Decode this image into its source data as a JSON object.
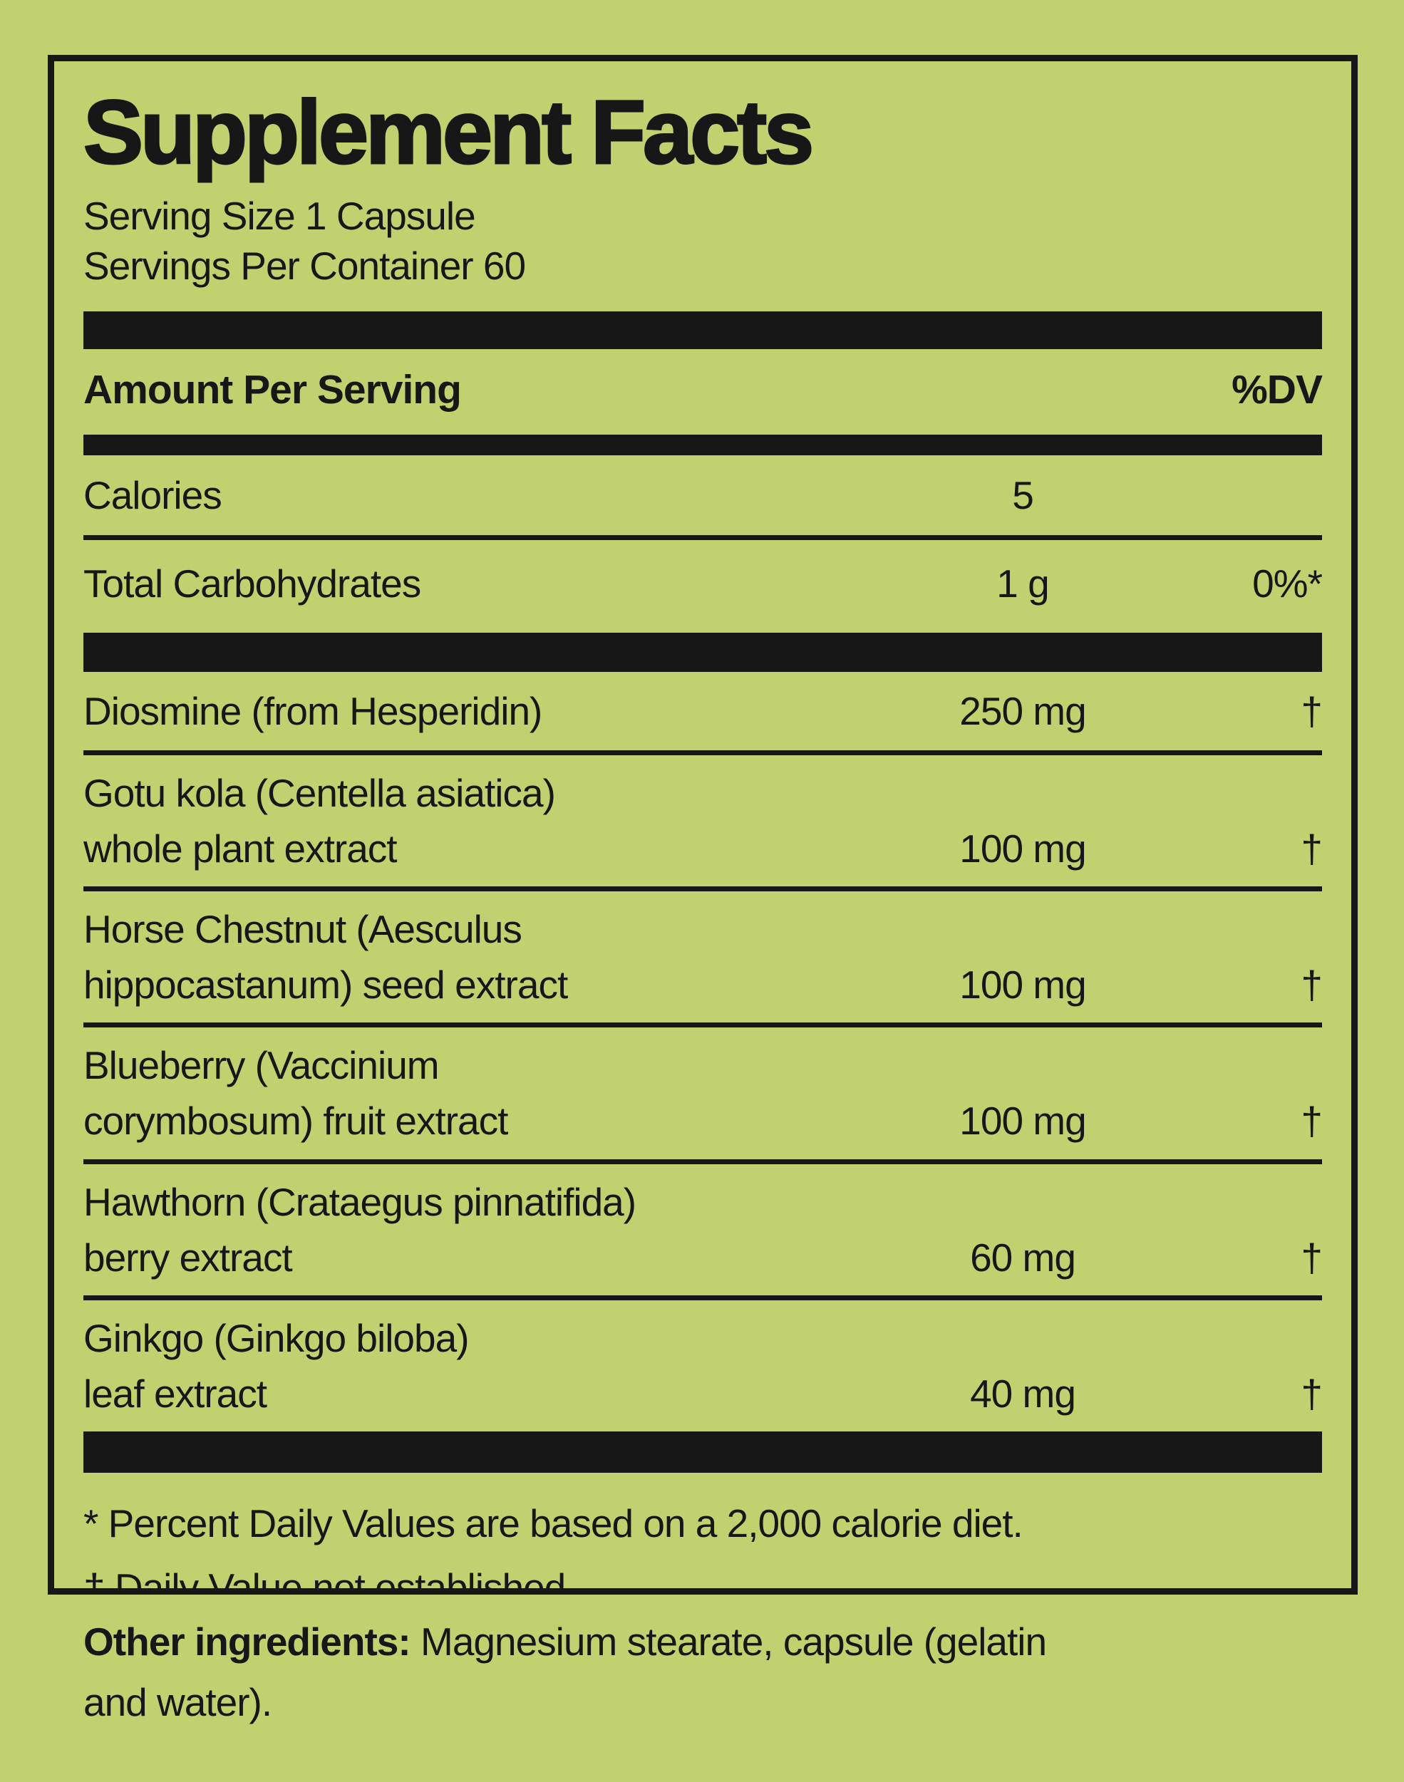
{
  "title": "Supplement Facts",
  "serving": {
    "size_line": "Serving Size 1 Capsule",
    "container_line": "Servings Per Container 60"
  },
  "header": {
    "amount_label": "Amount Per Serving",
    "dv_label": "%DV"
  },
  "macro_rows": [
    {
      "name": "Calories",
      "amount": "5",
      "dv": ""
    },
    {
      "name": "Total Carbohydrates",
      "amount": "1 g",
      "dv": "0%*"
    }
  ],
  "ingredient_rows": [
    {
      "name_lines": [
        "Diosmine (from Hesperidin)"
      ],
      "amount": "250 mg",
      "dv": "†"
    },
    {
      "name_lines": [
        "Gotu kola (Centella asiatica)",
        "whole plant extract"
      ],
      "amount": "100 mg",
      "dv": "†"
    },
    {
      "name_lines": [
        "Horse Chestnut (Aesculus",
        "hippocastanum) seed extract"
      ],
      "amount": "100 mg",
      "dv": "†"
    },
    {
      "name_lines": [
        "Blueberry (Vaccinium",
        "corymbosum) fruit extract"
      ],
      "amount": "100 mg",
      "dv": "†"
    },
    {
      "name_lines": [
        "Hawthorn (Crataegus pinnatifida)",
        "berry extract"
      ],
      "amount": "60 mg",
      "dv": "†"
    },
    {
      "name_lines": [
        "Ginkgo (Ginkgo biloba)",
        "leaf extract"
      ],
      "amount": "40 mg",
      "dv": "†"
    }
  ],
  "footnotes": [
    "* Percent Daily Values are based on a 2,000 calorie diet.",
    "† Daily Value not established."
  ],
  "other_ingredients": {
    "label": "Other ingredients:",
    "line1": " Magnesium stearate, capsule (gelatin",
    "line2": "and water)."
  },
  "colors": {
    "background": "#c2d170",
    "ink": "#171717"
  }
}
